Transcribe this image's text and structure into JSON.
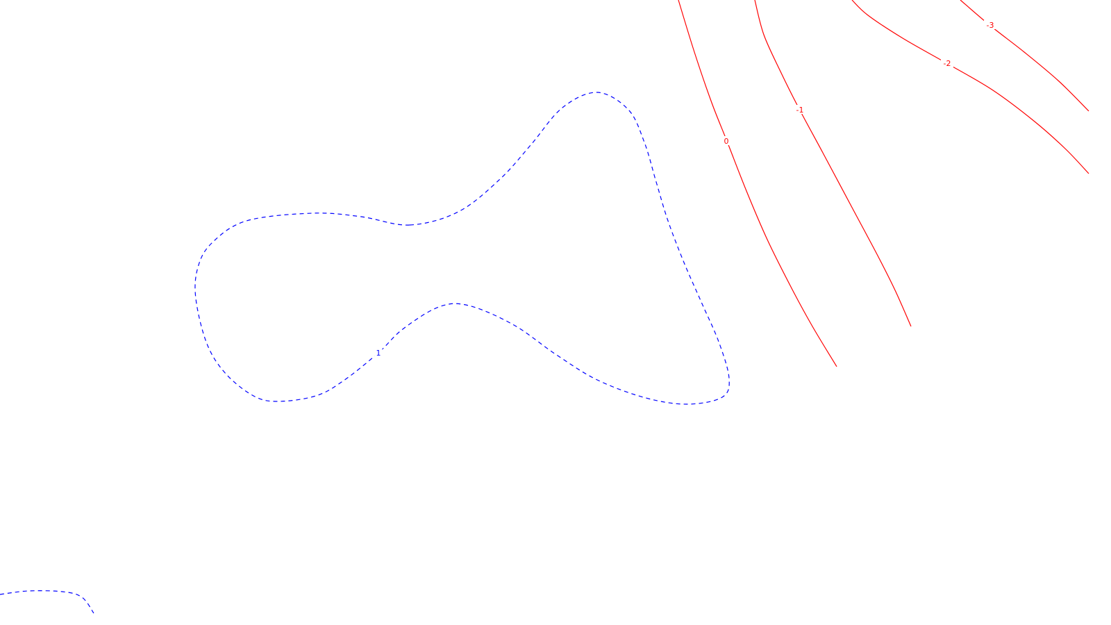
{
  "chart_data": {
    "type": "contour",
    "title": "",
    "xlabel": "",
    "ylabel": "",
    "grid": false,
    "legend": "none",
    "levels": [
      {
        "value": 1,
        "label": "1",
        "color": "#0000ff",
        "style": "dashed",
        "segments": [
          {
            "closed": true,
            "points": [
              [
                590,
                324
              ],
              [
                660,
                305
              ],
              [
                720,
                258
              ],
              [
                765,
                208
              ],
              [
                810,
                155
              ],
              [
                860,
                133
              ],
              [
                905,
                158
              ],
              [
                928,
                205
              ],
              [
                945,
                262
              ],
              [
                962,
                318
              ],
              [
                985,
                378
              ],
              [
                1010,
                435
              ],
              [
                1035,
                492
              ],
              [
                1050,
                545
              ],
              [
                1040,
                572
              ],
              [
                990,
                582
              ],
              [
                930,
                573
              ],
              [
                860,
                547
              ],
              [
                800,
                510
              ],
              [
                740,
                468
              ],
              [
                675,
                440
              ],
              [
                632,
                442
              ],
              [
                580,
                474
              ],
              [
                545,
                508
              ],
              [
                495,
                548
              ],
              [
                455,
                570
              ],
              [
                400,
                578
              ],
              [
                365,
                570
              ],
              [
                325,
                538
              ],
              [
                298,
                495
              ],
              [
                282,
                430
              ],
              [
                285,
                385
              ],
              [
                305,
                350
              ],
              [
                355,
                318
              ],
              [
                450,
                307
              ],
              [
                520,
                312
              ]
            ],
            "label_at": [
              545,
              508
            ]
          },
          {
            "closed": false,
            "points": [
              [
                0,
                856
              ],
              [
                40,
                851
              ],
              [
                90,
                852
              ],
              [
                118,
                860
              ],
              [
                135,
                883
              ]
            ]
          }
        ]
      },
      {
        "value": 0,
        "label": "0",
        "color": "#ff0000",
        "style": "solid",
        "segments": [
          {
            "closed": false,
            "points": [
              [
                977,
                0
              ],
              [
                1000,
                75
              ],
              [
                1025,
                148
              ],
              [
                1048,
                206
              ],
              [
                1075,
                275
              ],
              [
                1105,
                345
              ],
              [
                1140,
                415
              ],
              [
                1170,
                470
              ],
              [
                1205,
                528
              ]
            ],
            "label_at": [
              1046,
              203
            ]
          }
        ]
      },
      {
        "value": -1,
        "label": "-1",
        "color": "#ff0000",
        "style": "solid",
        "segments": [
          {
            "closed": false,
            "points": [
              [
                1087,
                0
              ],
              [
                1100,
                50
              ],
              [
                1125,
                105
              ],
              [
                1150,
                155
              ],
              [
                1185,
                220
              ],
              [
                1225,
                295
              ],
              [
                1265,
                370
              ],
              [
                1290,
                420
              ],
              [
                1312,
                470
              ]
            ],
            "label_at": [
              1152,
              158
            ]
          }
        ]
      },
      {
        "value": -2,
        "label": "-2",
        "color": "#ff0000",
        "style": "solid",
        "segments": [
          {
            "closed": false,
            "points": [
              [
                1227,
                0
              ],
              [
                1250,
                22
              ],
              [
                1300,
                55
              ],
              [
                1365,
                92
              ],
              [
                1430,
                130
              ],
              [
                1490,
                175
              ],
              [
                1535,
                215
              ],
              [
                1568,
                250
              ]
            ],
            "label_at": [
              1364,
              91
            ]
          }
        ]
      },
      {
        "value": -3,
        "label": "-3",
        "color": "#ff0000",
        "style": "solid",
        "segments": [
          {
            "closed": false,
            "points": [
              [
                1383,
                0
              ],
              [
                1425,
                36
              ],
              [
                1475,
                75
              ],
              [
                1525,
                117
              ],
              [
                1568,
                160
              ]
            ],
            "label_at": [
              1426,
              36
            ]
          }
        ]
      }
    ]
  }
}
